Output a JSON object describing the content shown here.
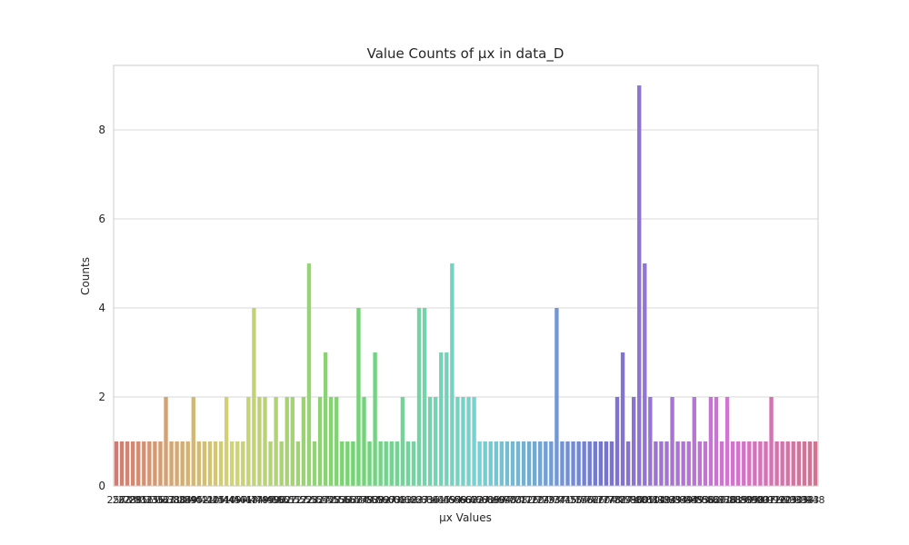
{
  "chart_data": {
    "type": "bar",
    "title": "Value Counts of µx in data_D",
    "xlabel": "µx Values",
    "ylabel": "Counts",
    "ylim": [
      0,
      9.45
    ],
    "yticks": [
      0,
      2,
      4,
      6,
      8
    ],
    "grid": true,
    "categories": [
      "257",
      "263",
      "273",
      "288",
      "295",
      "316",
      "325",
      "336",
      "352",
      "363",
      "371",
      "380",
      "384",
      "389",
      "395",
      "402",
      "411",
      "420",
      "425",
      "431",
      "440",
      "449",
      "457",
      "461",
      "468",
      "474",
      "479",
      "485",
      "490",
      "496",
      "502",
      "507",
      "512",
      "517",
      "522",
      "528",
      "532",
      "537",
      "542",
      "548",
      "553",
      "558",
      "563",
      "568",
      "574",
      "579",
      "583",
      "588",
      "592",
      "597",
      "603",
      "608",
      "613",
      "618",
      "623",
      "627",
      "631",
      "636",
      "641",
      "645",
      "649",
      "654",
      "659",
      "663",
      "668",
      "672",
      "677",
      "681",
      "686",
      "690",
      "694",
      "698",
      "703",
      "708",
      "712",
      "716",
      "720",
      "724",
      "729",
      "733",
      "737",
      "741",
      "745",
      "750",
      "754",
      "758",
      "762",
      "766",
      "770",
      "774",
      "778",
      "782",
      "787",
      "791",
      "796",
      "800",
      "805",
      "810",
      "814",
      "819",
      "824",
      "829",
      "834",
      "839",
      "844",
      "849",
      "853",
      "858",
      "862",
      "866",
      "871",
      "876",
      "881",
      "885",
      "890",
      "895",
      "898",
      "903",
      "907",
      "912",
      "916",
      "920",
      "925",
      "930",
      "935",
      "938",
      "943",
      "948"
    ],
    "values": [
      1,
      1,
      1,
      1,
      1,
      1,
      1,
      1,
      1,
      2,
      1,
      1,
      1,
      1,
      2,
      1,
      1,
      1,
      1,
      1,
      2,
      1,
      1,
      1,
      2,
      4,
      2,
      2,
      1,
      2,
      1,
      2,
      2,
      1,
      2,
      5,
      1,
      2,
      3,
      2,
      2,
      1,
      1,
      1,
      4,
      2,
      1,
      3,
      1,
      1,
      1,
      1,
      2,
      1,
      1,
      4,
      4,
      2,
      2,
      3,
      3,
      5,
      2,
      2,
      2,
      2,
      1,
      1,
      1,
      1,
      1,
      1,
      1,
      1,
      1,
      1,
      1,
      1,
      1,
      1,
      4,
      1,
      1,
      1,
      1,
      1,
      1,
      1,
      1,
      1,
      1,
      2,
      3,
      1,
      2,
      9,
      5,
      2,
      1,
      1,
      1,
      2,
      1,
      1,
      1,
      2,
      1,
      1,
      2,
      2,
      1,
      2,
      1,
      1,
      1,
      1,
      1,
      1,
      1,
      2,
      1,
      1,
      1,
      1,
      1,
      1,
      1,
      1
    ]
  }
}
